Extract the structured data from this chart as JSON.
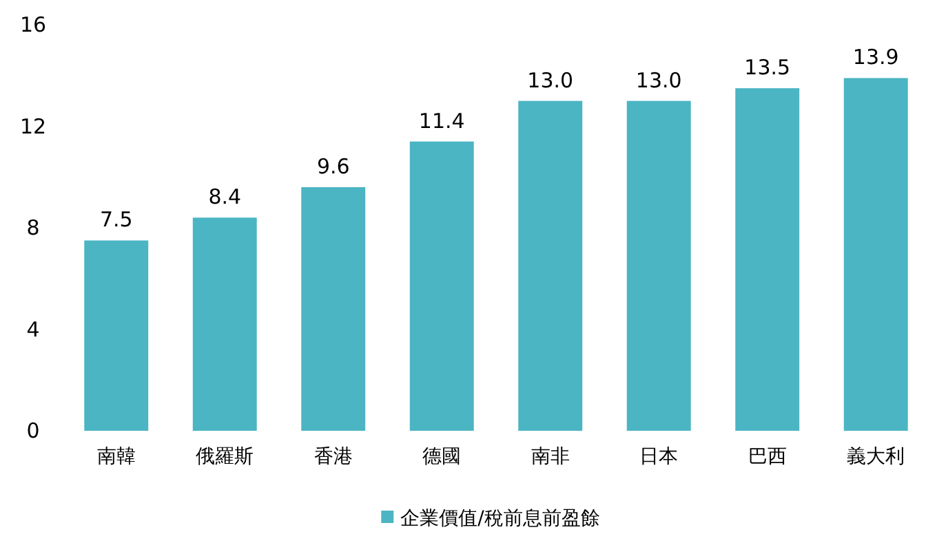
{
  "chart_data": {
    "type": "bar",
    "categories": [
      "南韓",
      "俄羅斯",
      "香港",
      "德國",
      "南非",
      "日本",
      "巴西",
      "義大利"
    ],
    "series": [
      {
        "name": "企業價值/稅前息前盈餘",
        "color": "#4bb5c3",
        "values": [
          7.5,
          8.4,
          9.6,
          11.4,
          13.0,
          13.0,
          13.5,
          13.9
        ]
      }
    ],
    "value_labels": [
      "7.5",
      "8.4",
      "9.6",
      "11.4",
      "13.0",
      "13.0",
      "13.5",
      "13.9"
    ],
    "ylim": [
      0,
      16
    ],
    "yticks": [
      0,
      4,
      8,
      12,
      16
    ],
    "legend": "bottom"
  }
}
